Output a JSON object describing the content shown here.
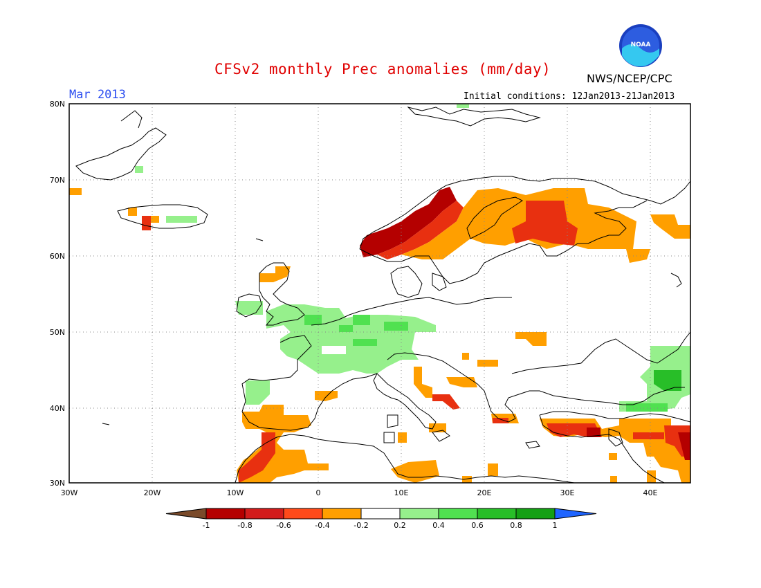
{
  "header": {
    "title": "CFSv2 monthly Prec anomalies (mm/day)",
    "period": "Mar 2013",
    "initial_conditions": "Initial conditions: 12Jan2013-21Jan2013",
    "agency": "NWS/NCEP/CPC",
    "logo_text": "NOAA"
  },
  "map": {
    "lon_range": [
      -30,
      45
    ],
    "lat_range": [
      30,
      80
    ],
    "lat_ticks": [
      "30N",
      "40N",
      "50N",
      "60N",
      "70N",
      "80N"
    ],
    "lon_ticks": [
      "30W",
      "20W",
      "10W",
      "0",
      "10E",
      "20E",
      "30E",
      "40E"
    ]
  },
  "legend": {
    "tick_labels": [
      "-1",
      "-0.8",
      "-0.6",
      "-0.4",
      "-0.2",
      "0.2",
      "0.4",
      "0.6",
      "0.8",
      "1"
    ],
    "colors": [
      "#7a4a2a",
      "#b40000",
      "#d21c1c",
      "#ff4a1a",
      "#ff9f00",
      "#ffffff",
      "#96f08c",
      "#50e150",
      "#28be28",
      "#14a014",
      "#1e64ff"
    ]
  },
  "colors": {
    "dry_strong": "#b40000",
    "dry_mod": "#e83010",
    "dry_light": "#ff9f00",
    "wet_light": "#96f08c",
    "wet_mod": "#50e150",
    "wet_strong": "#28be28"
  }
}
